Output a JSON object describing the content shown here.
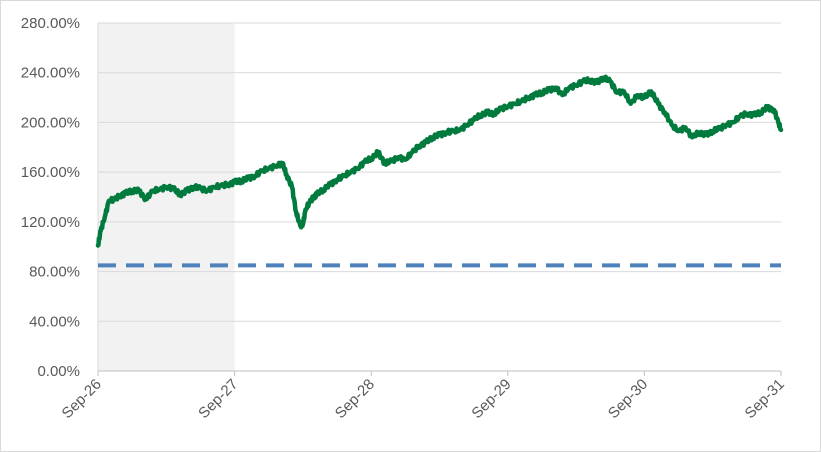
{
  "chart_data": {
    "type": "line",
    "title": "",
    "xlabel": "",
    "ylabel": "",
    "ylim": [
      0,
      280
    ],
    "y_ticks": [
      "0.00%",
      "40.00%",
      "80.00%",
      "120.00%",
      "160.00%",
      "200.00%",
      "240.00%",
      "280.00%"
    ],
    "x_ticks": [
      "Sep-26",
      "Sep-27",
      "Sep-28",
      "Sep-29",
      "Sep-30",
      "Sep-31"
    ],
    "grid": true,
    "legend": "none",
    "shaded_region": {
      "x_start": 0,
      "x_end": 1,
      "color": "#f2f2f2"
    },
    "series": [
      {
        "style": "solid",
        "color": "#007a3d",
        "x": [
          0.0,
          0.02,
          0.05,
          0.08,
          0.12,
          0.16,
          0.2,
          0.25,
          0.3,
          0.35,
          0.4,
          0.45,
          0.5,
          0.55,
          0.6,
          0.65,
          0.7,
          0.75,
          0.8,
          0.85,
          0.9,
          0.95,
          1.0,
          1.05,
          1.1,
          1.15,
          1.2,
          1.25,
          1.3,
          1.35,
          1.38,
          1.42,
          1.45,
          1.48,
          1.5,
          1.52,
          1.55,
          1.58,
          1.6,
          1.65,
          1.7,
          1.75,
          1.8,
          1.85,
          1.9,
          1.95,
          2.0,
          2.05,
          2.1,
          2.15,
          2.2,
          2.25,
          2.3,
          2.35,
          2.4,
          2.45,
          2.5,
          2.55,
          2.6,
          2.65,
          2.7,
          2.75,
          2.8,
          2.85,
          2.9,
          2.95,
          3.0,
          3.05,
          3.1,
          3.15,
          3.2,
          3.25,
          3.3,
          3.35,
          3.4,
          3.45,
          3.5,
          3.55,
          3.6,
          3.65,
          3.7,
          3.75,
          3.8,
          3.85,
          3.9,
          3.95,
          4.0,
          4.05,
          4.1,
          4.15,
          4.2,
          4.25,
          4.3,
          4.35,
          4.4,
          4.45,
          4.5,
          4.55,
          4.6,
          4.65,
          4.7,
          4.75,
          4.8,
          4.85,
          4.9,
          4.95,
          4.98,
          5.0
        ],
        "y": [
          101,
          113,
          124,
          137,
          138,
          141,
          143,
          145,
          145,
          138,
          145,
          146,
          148,
          147,
          142,
          145,
          148,
          147,
          145,
          148,
          149,
          150,
          152,
          153,
          155,
          157,
          161,
          163,
          165,
          167,
          158,
          148,
          128,
          117,
          118,
          130,
          136,
          140,
          142,
          146,
          150,
          154,
          157,
          160,
          163,
          168,
          171,
          176,
          167,
          169,
          172,
          170,
          176,
          181,
          184,
          188,
          190,
          192,
          193,
          194,
          198,
          202,
          206,
          208,
          207,
          211,
          213,
          215,
          217,
          220,
          222,
          224,
          226,
          228,
          222,
          228,
          230,
          233,
          234,
          232,
          236,
          233,
          224,
          225,
          215,
          222,
          220,
          225,
          215,
          208,
          198,
          193,
          196,
          188,
          192,
          190,
          193,
          195,
          198,
          200,
          205,
          207,
          206,
          208,
          212,
          210,
          200,
          194
        ]
      },
      {
        "style": "dashed",
        "color": "#4f81bd",
        "x": [
          0,
          5
        ],
        "y": [
          85,
          85
        ]
      }
    ]
  }
}
